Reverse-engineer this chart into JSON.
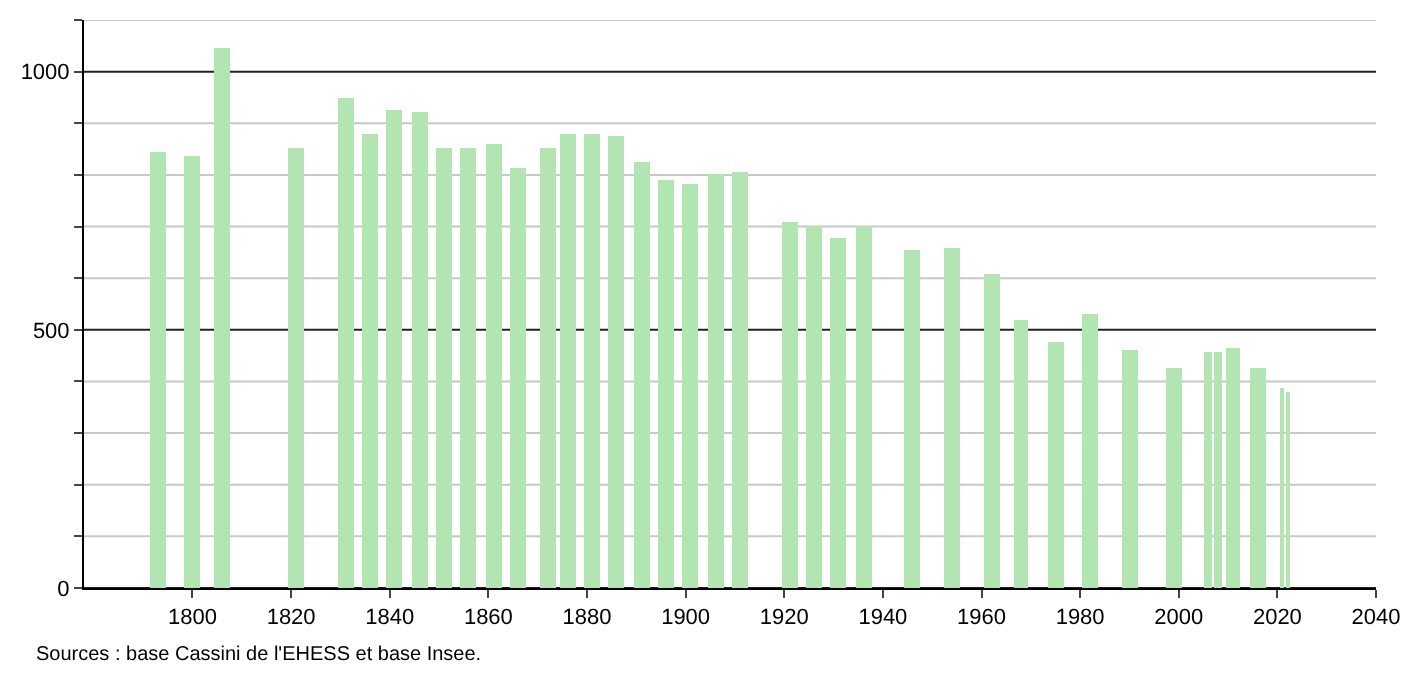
{
  "chart_data": {
    "type": "bar",
    "x": [
      1793,
      1800,
      1806,
      1821,
      1831,
      1836,
      1841,
      1846,
      1851,
      1856,
      1861,
      1866,
      1872,
      1876,
      1881,
      1886,
      1891,
      1896,
      1901,
      1906,
      1911,
      1921,
      1926,
      1931,
      1936,
      1946,
      1954,
      1962,
      1968,
      1975,
      1982,
      1990,
      1999,
      2006,
      2008,
      2011,
      2016,
      2021,
      2022
    ],
    "values": [
      843,
      836,
      1046,
      851,
      950,
      878,
      924,
      920,
      851,
      851,
      859,
      813,
      851,
      878,
      878,
      874,
      824,
      790,
      782,
      801,
      805,
      710,
      702,
      676,
      702,
      653,
      660,
      607,
      519,
      477,
      530,
      462,
      427,
      458,
      458,
      466,
      427,
      389,
      378
    ],
    "color": "#b2e5b2",
    "xlim": [
      1778,
      2040
    ],
    "xticks": [
      1800,
      1820,
      1840,
      1860,
      1880,
      1900,
      1920,
      1940,
      1960,
      1980,
      2000,
      2020,
      2040
    ],
    "ylim": [
      0,
      1100
    ],
    "yticks": [
      0,
      {
        "value": 100,
        "label": null
      },
      {
        "value": 200,
        "label": null
      },
      {
        "value": 300,
        "label": null
      },
      {
        "value": 400,
        "label": null
      },
      500,
      {
        "value": 600,
        "label": null
      },
      {
        "value": 700,
        "label": null
      },
      {
        "value": 800,
        "label": null
      },
      {
        "value": 900,
        "label": null
      },
      1000,
      {
        "value": 1100,
        "label": null
      }
    ],
    "grid": "y",
    "legend": false,
    "annotations": [
      "Sources : base Cassini de l'EHESS et base Insee."
    ]
  }
}
